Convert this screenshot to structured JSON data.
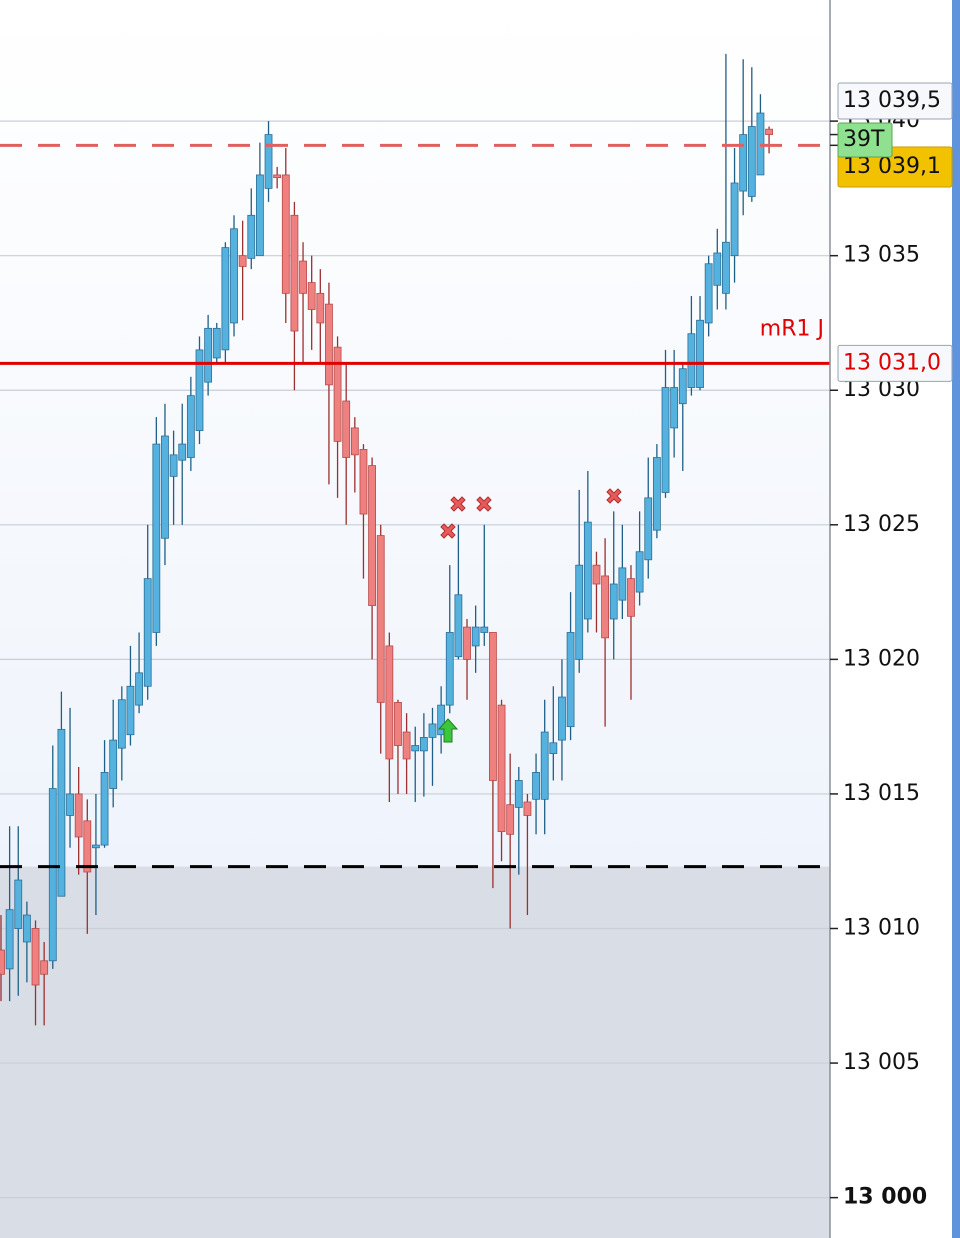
{
  "chart_data": {
    "type": "candlestick",
    "series": {
      "open": [
        13009.2,
        13008.5,
        13010.0,
        13009.5,
        13010.0,
        13008.8,
        13008.8,
        13011.2,
        13014.2,
        13015.0,
        13014.0,
        13013.0,
        13013.1,
        13015.2,
        13016.7,
        13017.2,
        13018.3,
        13019.0,
        13021.0,
        13024.5,
        13026.8,
        13027.4,
        13027.5,
        13028.5,
        13030.3,
        13031.2,
        13031.5,
        13032.5,
        13035.0,
        13034.9,
        13035.0,
        13037.5,
        13038.0,
        13038.0,
        13036.5,
        13034.8,
        13034.0,
        13033.6,
        13033.2,
        13031.6,
        13029.6,
        13028.6,
        13027.8,
        13027.2,
        13024.6,
        13020.5,
        13018.4,
        13017.3,
        13016.6,
        13016.6,
        13017.1,
        13017.2,
        13018.3,
        13020.1,
        13021.2,
        13020.5,
        13021.0,
        13021.0,
        13018.3,
        13014.6,
        13014.5,
        13014.7,
        13014.8,
        13014.8,
        13016.5,
        13017.0,
        13017.5,
        13020.0,
        13021.5,
        13023.5,
        13023.1,
        13021.5,
        13022.2,
        13023.0,
        13022.5,
        13023.7,
        13024.8,
        13026.2,
        13028.6,
        13029.5,
        13030.1,
        13030.1,
        13032.5,
        13033.9,
        13033.6,
        13035.0,
        13037.4,
        13037.2,
        13038.0,
        13039.7
      ],
      "high": [
        13010.5,
        13013.8,
        13013.8,
        13011.0,
        13010.3,
        13009.5,
        13016.8,
        13018.8,
        13018.2,
        13016.0,
        13014.8,
        13015.0,
        13017.0,
        13018.5,
        13019.0,
        13020.5,
        13021.0,
        13025.0,
        13029.0,
        13029.5,
        13028.5,
        13029.5,
        13030.5,
        13032.0,
        13032.8,
        13032.5,
        13035.5,
        13036.5,
        13036.3,
        13037.5,
        13039.2,
        13040.0,
        13038.3,
        13039.0,
        13037.0,
        13035.5,
        13035.0,
        13034.5,
        13034.0,
        13032.0,
        13031.0,
        13029.0,
        13028.0,
        13027.5,
        13025.0,
        13021.0,
        13018.5,
        13018.0,
        13017.5,
        13018.0,
        13018.2,
        13019.0,
        13023.5,
        13025.0,
        13021.5,
        13022.0,
        13025.0,
        13021.0,
        13018.5,
        13016.5,
        13016.0,
        13015.0,
        13016.5,
        13018.5,
        13019.0,
        13020.0,
        13022.5,
        13026.3,
        13027.0,
        13024.0,
        13024.5,
        13025.5,
        13025.0,
        13023.5,
        13025.5,
        13027.5,
        13028.0,
        13031.5,
        13031.5,
        13031.0,
        13033.5,
        13033.5,
        13035.0,
        13036.0,
        13042.5,
        13039.0,
        13042.3,
        13042.0,
        13041.0,
        13039.8
      ],
      "low": [
        13007.3,
        13007.3,
        13007.5,
        13008.0,
        13006.4,
        13006.4,
        13008.5,
        13011.2,
        13013.0,
        13012.0,
        13009.8,
        13010.5,
        13013.0,
        13014.5,
        13015.5,
        13016.8,
        13018.0,
        13018.5,
        13020.5,
        13023.5,
        13025.0,
        13025.0,
        13027.0,
        13028.0,
        13029.8,
        13031.0,
        13031.0,
        13032.0,
        13032.6,
        13034.5,
        13035.0,
        13037.0,
        13037.5,
        13032.5,
        13030.0,
        13031.0,
        13031.5,
        13031.0,
        13026.5,
        13026.0,
        13025.0,
        13026.2,
        13023.0,
        13020.0,
        13016.5,
        13014.7,
        13015.0,
        13015.0,
        13014.7,
        13014.9,
        13015.3,
        13016.5,
        13018.0,
        13020.0,
        13018.5,
        13019.5,
        13020.5,
        13011.5,
        13012.5,
        13010.0,
        13012.0,
        13010.5,
        13013.5,
        13013.5,
        13015.5,
        13015.5,
        13017.0,
        13019.5,
        13021.0,
        13021.0,
        13017.5,
        13020.0,
        13021.5,
        13018.5,
        13022.0,
        13023.0,
        13024.5,
        13026.0,
        13027.5,
        13027.0,
        13029.8,
        13030.0,
        13032.0,
        13033.0,
        13033.0,
        13034.0,
        13036.5,
        13037.0,
        13038.0,
        13038.8
      ],
      "close": [
        13008.3,
        13010.7,
        13011.8,
        13010.5,
        13007.9,
        13008.3,
        13015.2,
        13017.4,
        13015.0,
        13013.4,
        13012.1,
        13013.1,
        13015.8,
        13017.0,
        13018.5,
        13019.0,
        13019.5,
        13023.0,
        13028.0,
        13028.3,
        13027.6,
        13028.0,
        13029.8,
        13031.5,
        13032.3,
        13032.3,
        13035.3,
        13036.0,
        13034.6,
        13036.5,
        13038.0,
        13039.5,
        13037.9,
        13033.6,
        13032.2,
        13033.6,
        13033.0,
        13032.5,
        13030.2,
        13028.1,
        13027.5,
        13027.6,
        13025.4,
        13022.0,
        13018.4,
        13016.3,
        13016.8,
        13016.3,
        13016.8,
        13017.1,
        13017.6,
        13018.3,
        13021.0,
        13022.4,
        13020.0,
        13021.2,
        13021.2,
        13015.5,
        13013.6,
        13013.5,
        13015.5,
        13014.2,
        13015.8,
        13017.3,
        13016.9,
        13018.6,
        13021.0,
        13023.5,
        13025.1,
        13022.8,
        13020.8,
        13022.8,
        13023.4,
        13021.6,
        13024.0,
        13026.0,
        13027.5,
        13030.1,
        13030.1,
        13030.8,
        13032.1,
        13032.6,
        13034.7,
        13035.1,
        13035.5,
        13037.7,
        13039.5,
        13039.8,
        13040.3,
        13039.5
      ]
    },
    "colors": {
      "up": "#55b1de",
      "down": "#ee8080"
    },
    "ylim": [
      12998.5,
      13044.5
    ],
    "yticks": [
      {
        "value": 13000,
        "label": "13 000"
      },
      {
        "value": 13005,
        "label": "13 005"
      },
      {
        "value": 13010,
        "label": "13 010"
      },
      {
        "value": 13015,
        "label": "13 015"
      },
      {
        "value": 13020,
        "label": "13 020"
      },
      {
        "value": 13025,
        "label": "13 025"
      },
      {
        "value": 13030,
        "label": "13 030"
      },
      {
        "value": 13035,
        "label": "13 035"
      },
      {
        "value": 13040,
        "label": "13 040"
      }
    ],
    "grid": true,
    "levels": [
      {
        "value": 13039.1,
        "label": "13 039,1",
        "style": "dashed",
        "color": "#e06060"
      },
      {
        "value": 13031.0,
        "label": "13 031,0",
        "name": "mR1 J",
        "style": "solid",
        "color": "#e00000"
      },
      {
        "value": 13012.3,
        "style": "dashed",
        "color": "#000000",
        "shade_below": true
      }
    ],
    "last_price": {
      "value": 13039.5,
      "label": "13 039,5"
    },
    "countdown": "39T"
  }
}
